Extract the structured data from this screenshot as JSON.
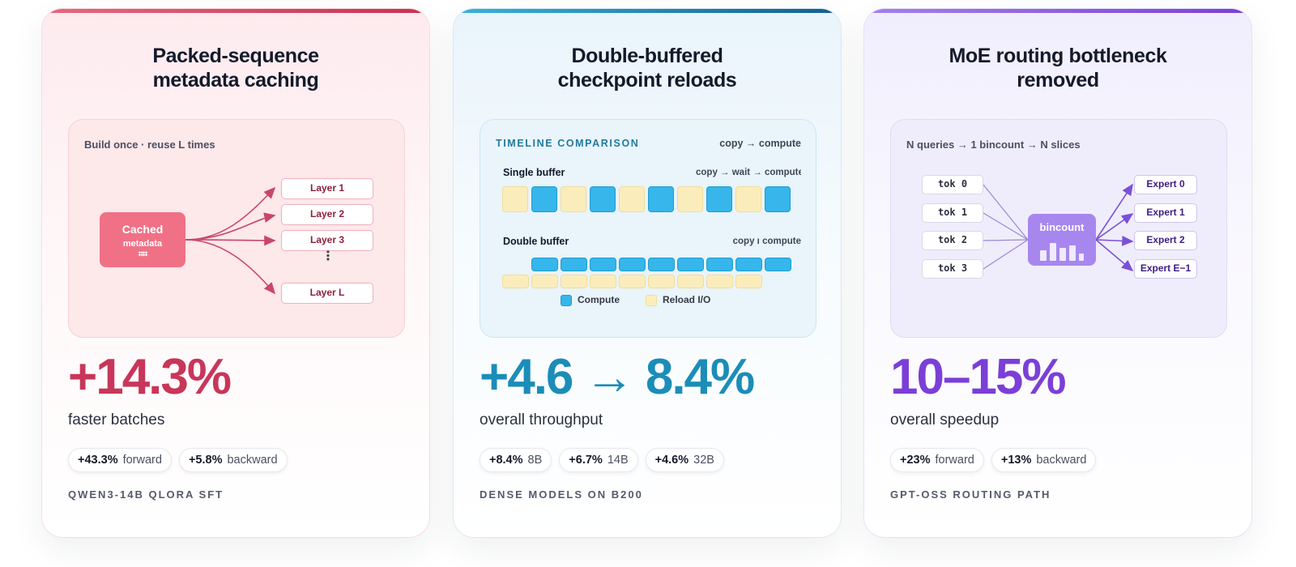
{
  "colors": {
    "card1_accent": "#c8365a",
    "card2_accent": "#1b8db8",
    "card3_accent": "#7b3fd7",
    "compute": "#36b6ea",
    "reload_io": "#fbedbb"
  },
  "cards": [
    {
      "title": "Packed-sequence\nmetadata caching",
      "panel": {
        "caption": "Build once · reuse L times",
        "cached_label": "Cached",
        "cached_sub": "metadata",
        "cached_icon": "grid-icon",
        "layers": [
          "Layer 1",
          "Layer 2",
          "Layer 3",
          "Layer L"
        ],
        "ellipsis": "⋮"
      },
      "big": "+14.3%",
      "sub": "faster batches",
      "chips": [
        {
          "value": "+43.3%",
          "label": "forward"
        },
        {
          "value": "+5.8%",
          "label": "backward"
        }
      ],
      "footer": "QWEN3-14B QLORA SFT"
    },
    {
      "title": "Double-buffered\ncheckpoint reloads",
      "panel": {
        "header": "TIMELINE COMPARISON",
        "header_right": "copy → compute",
        "row1_label": "Single buffer",
        "row1_right": "copy → wait → compute",
        "row1_pattern": [
          "reload",
          "compute",
          "reload",
          "compute",
          "reload",
          "compute",
          "reload",
          "compute",
          "reload",
          "compute"
        ],
        "row2_label": "Double buffer",
        "row2_right": "copy ı compute",
        "row2_compute_blocks": 9,
        "row2_reload_blocks": 9,
        "legend": [
          "Compute",
          "Reload I/O"
        ]
      },
      "big": "+4.6 → 8.4%",
      "sub": "overall throughput",
      "chips": [
        {
          "value": "+8.4%",
          "label": "8B"
        },
        {
          "value": "+6.7%",
          "label": "14B"
        },
        {
          "value": "+4.6%",
          "label": "32B"
        }
      ],
      "footer": "DENSE MODELS ON B200"
    },
    {
      "title": "MoE routing bottleneck\nremoved",
      "panel": {
        "caption": "N queries → 1 bincount → N slices",
        "tokens": [
          "tok 0",
          "tok 1",
          "tok 2",
          "tok 3"
        ],
        "bincount_label": "bincount",
        "bincount_icon": "bar-chart-icon",
        "experts": [
          "Expert 0",
          "Expert 1",
          "Expert 2",
          "Expert E−1"
        ]
      },
      "big": "10–15%",
      "sub": "overall speedup",
      "chips": [
        {
          "value": "+23%",
          "label": "forward"
        },
        {
          "value": "+13%",
          "label": "backward"
        }
      ],
      "footer": "GPT-OSS ROUTING PATH"
    }
  ]
}
